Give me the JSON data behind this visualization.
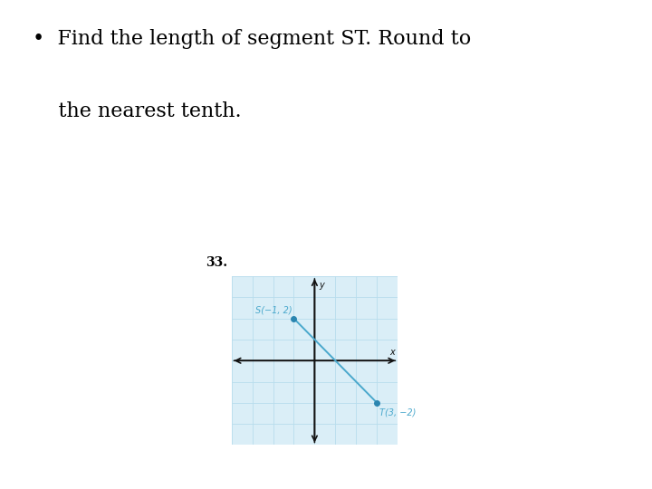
{
  "bullet_text_line1": "•  Find the length of segment ST. Round to",
  "bullet_text_line2": "    the nearest tenth.",
  "problem_number": "33.",
  "S_point": [
    -1,
    2
  ],
  "T_point": [
    3,
    -2
  ],
  "S_label": "S(−1, 2)",
  "T_label": "T(3, −2)",
  "grid_color": "#b8dded",
  "line_color": "#4aa8cc",
  "point_color": "#2a85b0",
  "axis_color": "#111111",
  "text_color": "#000000",
  "label_color": "#4aa8cc",
  "background_color": "#ffffff",
  "grid_bg_color": "#daeef7",
  "grid_xlim": [
    -4,
    4
  ],
  "grid_ylim": [
    -4,
    4
  ],
  "bullet_fontsize": 16,
  "label_fontsize": 7,
  "problem_number_fontsize": 10,
  "x_label": "x",
  "y_label": "y"
}
